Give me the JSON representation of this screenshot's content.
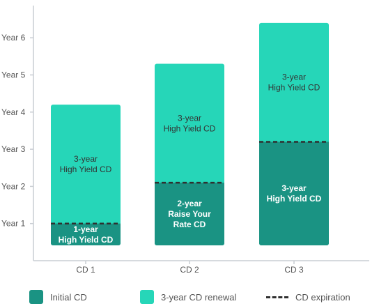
{
  "chart_data": {
    "type": "bar",
    "stacked": true,
    "categories": [
      "CD 1",
      "CD 2",
      "CD 3"
    ],
    "y_tick_labels": [
      "Year 1",
      "Year 2",
      "Year 3",
      "Year 4",
      "Year 5",
      "Year 6"
    ],
    "ylim": [
      0,
      6.4
    ],
    "series": [
      {
        "name": "Initial CD",
        "values": [
          1,
          2.1,
          3.2
        ],
        "segment_labels": [
          "1-year\nHigh Yield CD",
          "2-year\nRaise Your\nRate CD",
          "3-year\nHigh Yield CD"
        ]
      },
      {
        "name": "3-year CD renewal",
        "values": [
          3.2,
          3.2,
          3.2
        ],
        "segment_labels": [
          "3-year\nHigh Yield CD",
          "3-year\nHigh Yield CD",
          "3-year\nHigh Yield CD"
        ]
      }
    ],
    "expiration_markers": [
      1,
      2.1,
      3.2
    ],
    "legend": [
      "Initial CD",
      "3-year CD renewal",
      "CD expiration"
    ],
    "legend_position": "bottom",
    "grid": false
  },
  "colors": {
    "initial": "#1a9383",
    "renewal": "#26d6b8",
    "axis": "#c9cdd3",
    "tick_text": "#555555",
    "initial_text": "#ffffff",
    "renewal_text": "#333333",
    "dash": "#2f2f2f"
  },
  "legend": {
    "initial_label": "Initial CD",
    "renewal_label": "3-year CD renewal",
    "expiration_label": "CD expiration"
  }
}
